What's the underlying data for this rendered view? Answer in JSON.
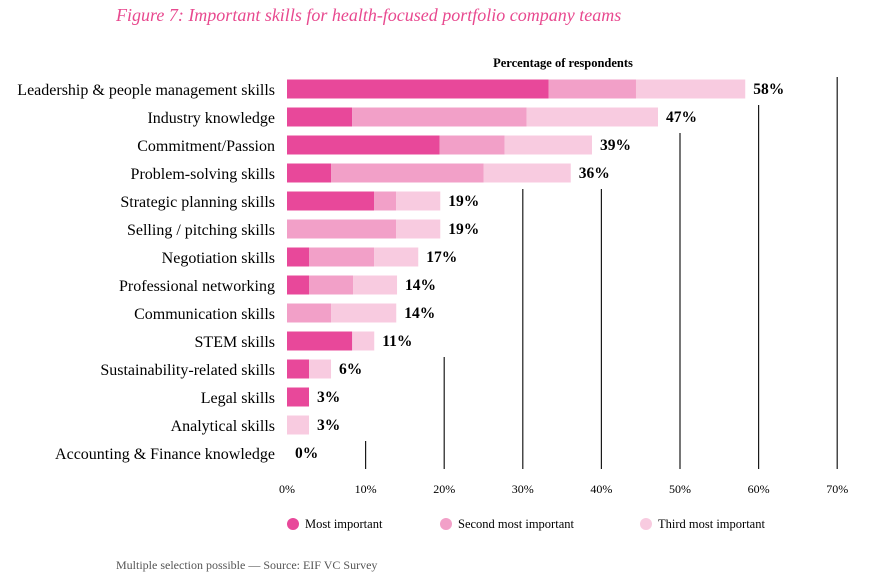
{
  "title": "Figure  7: Important skills for health-focused portfolio company teams",
  "footnote": "Multiple selection possible — Source: EIF VC Survey",
  "colors": {
    "most": "#e8489a",
    "second": "#f2a0c8",
    "third": "#f8cbe0",
    "title": "#e8498f"
  },
  "chart_data": {
    "type": "bar",
    "orientation": "horizontal",
    "stacked": true,
    "title": "Figure  7: Important skills for health-focused portfolio company teams",
    "xlabel": "Percentage of respondents",
    "ylabel": "",
    "xlim": [
      0,
      70
    ],
    "xticks": [
      "0%",
      "10%",
      "20%",
      "30%",
      "40%",
      "50%",
      "60%",
      "70%"
    ],
    "grid": "vertical lines, partial",
    "legend_position": "bottom",
    "categories": [
      "Leadership & people management skills",
      "Industry knowledge",
      "Commitment/Passion",
      "Problem-solving skills",
      "Strategic planning skills",
      "Selling / pitching skills",
      "Negotiation skills",
      "Professional networking",
      "Communication skills",
      "STEM skills",
      "Sustainability-related skills",
      "Legal skills",
      "Analytical skills",
      "Accounting & Finance knowledge"
    ],
    "series": [
      {
        "name": "Most important",
        "values": [
          33.3,
          8.3,
          19.4,
          5.6,
          11.1,
          0,
          2.8,
          2.8,
          0,
          8.3,
          2.8,
          2.8,
          0,
          0
        ]
      },
      {
        "name": "Second most important",
        "values": [
          11.1,
          22.2,
          8.3,
          19.4,
          2.8,
          13.9,
          8.3,
          5.6,
          5.6,
          0,
          0,
          0,
          0,
          0
        ]
      },
      {
        "name": "Third most important",
        "values": [
          13.9,
          16.7,
          11.1,
          11.1,
          5.6,
          5.6,
          5.6,
          5.6,
          8.3,
          2.8,
          2.8,
          0,
          2.8,
          0
        ]
      }
    ],
    "total_labels": [
      "58%",
      "47%",
      "39%",
      "36%",
      "19%",
      "19%",
      "17%",
      "14%",
      "14%",
      "11%",
      "6%",
      "3%",
      "3%",
      "0%"
    ]
  }
}
